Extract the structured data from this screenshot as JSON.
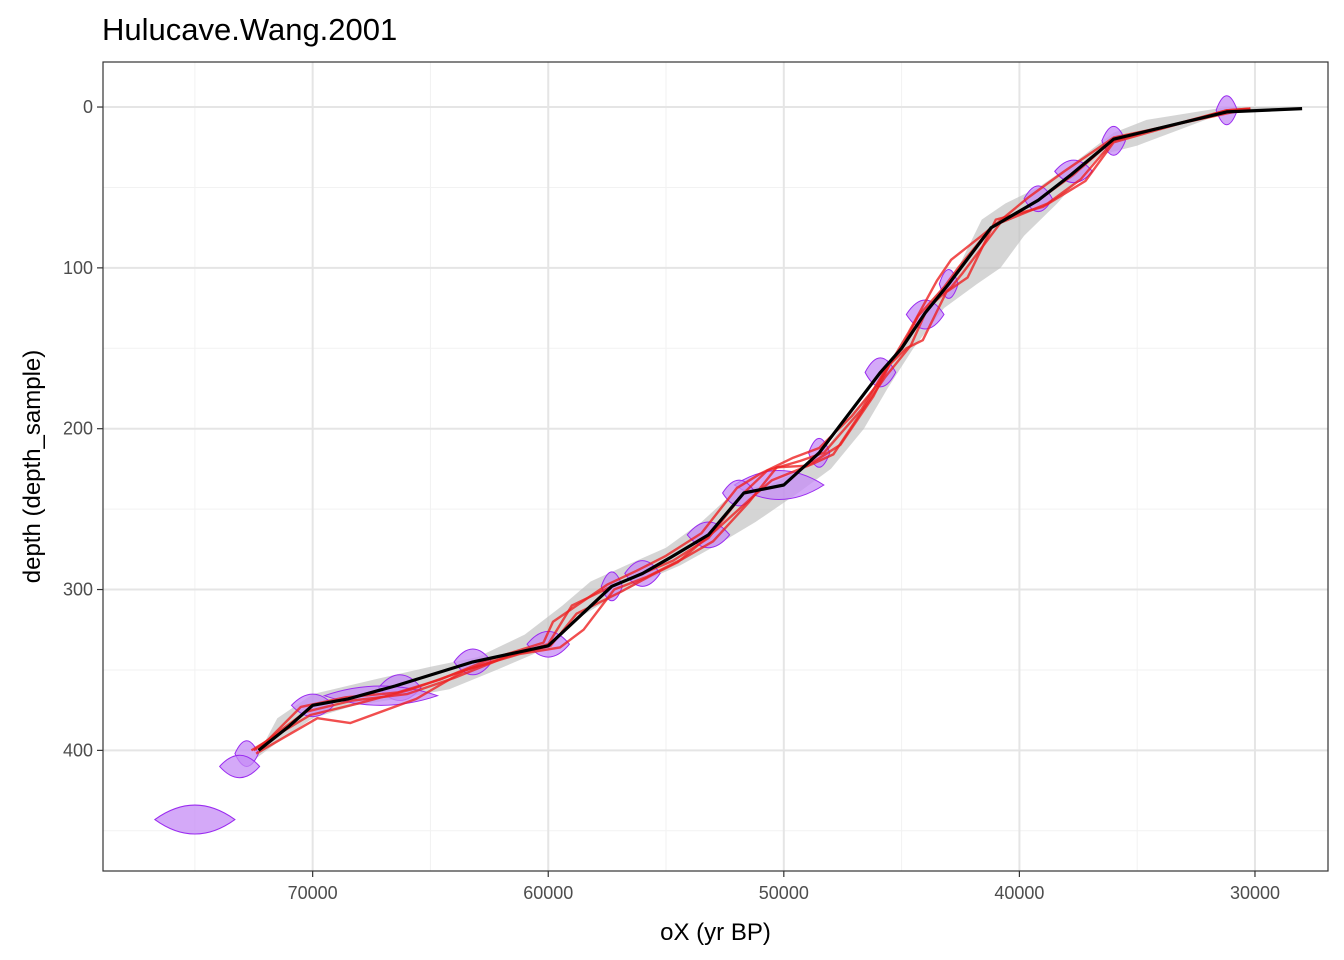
{
  "chart_data": {
    "type": "line",
    "title": "Hulucave.Wang.2001",
    "xlabel": "oX (yr BP)",
    "ylabel": "depth (depth_sample)",
    "xlim": [
      78900,
      26900
    ],
    "ylim": [
      475,
      -28
    ],
    "x_reversed": true,
    "y_reversed": true,
    "grid": true,
    "x_ticks": [
      70000,
      60000,
      50000,
      40000,
      30000
    ],
    "x_tick_labels": [
      "70000",
      "60000",
      "50000",
      "40000",
      "30000"
    ],
    "y_ticks": [
      0,
      100,
      200,
      300,
      400
    ],
    "y_tick_labels": [
      "0",
      "100",
      "200",
      "300",
      "400"
    ],
    "colors": {
      "median": "#000000",
      "ensemble": "#ee2222",
      "uncertainty_band": "#bfbfbf",
      "date_fill": "#c58cf5",
      "date_stroke": "#9a2bf0"
    },
    "series": [
      {
        "role": "median",
        "x": [
          28000,
          31200,
          36000,
          37800,
          39200,
          41200,
          43000,
          44000,
          45000,
          45900,
          48500,
          50000,
          51700,
          53200,
          54800,
          56000,
          57300,
          60000,
          63200,
          66500,
          68500,
          70000,
          71000,
          72300
        ],
        "depth": [
          1,
          3,
          20,
          42,
          58,
          75,
          110,
          128,
          150,
          165,
          215,
          235,
          240,
          266,
          280,
          290,
          298,
          335,
          345,
          360,
          368,
          372,
          385,
          400
        ]
      },
      {
        "role": "uncertainty_band",
        "x_upper": [
          28000,
          31200,
          34600,
          36000,
          37800,
          39200,
          40600,
          41600,
          42600,
          43600,
          44600,
          45500,
          46200,
          47100,
          48000,
          49200,
          50600,
          52000,
          53500,
          55000,
          56700,
          58200,
          59400,
          61000,
          63000,
          65000,
          67400,
          70000,
          71500
        ],
        "depth_upper": [
          0,
          0,
          8,
          16,
          36,
          50,
          60,
          70,
          100,
          118,
          140,
          160,
          176,
          190,
          208,
          225,
          235,
          238,
          258,
          274,
          285,
          295,
          310,
          328,
          342,
          348,
          356,
          365,
          380
        ],
        "x_lower": [
          72400,
          71400,
          70000,
          68200,
          66400,
          64200,
          62200,
          60600,
          59000,
          57400,
          56000,
          54400,
          52800,
          51200,
          49400,
          48000,
          46600,
          45600,
          44500,
          43200,
          41800,
          40800,
          39800,
          38400,
          36600,
          35000,
          31200,
          28000
        ],
        "depth_lower": [
          405,
          394,
          380,
          372,
          368,
          362,
          350,
          340,
          320,
          306,
          295,
          285,
          272,
          258,
          240,
          225,
          200,
          175,
          150,
          125,
          110,
          100,
          80,
          60,
          30,
          24,
          3,
          1
        ]
      },
      {
        "role": "ensemble",
        "members": [
          {
            "x": [
              72500,
              70300,
              68300,
              66000,
              64000,
              61800,
              60000,
              59000,
              57300,
              56000,
              54700,
              53200,
              51700,
              50700,
              49300,
              48300,
              46700,
              45800,
              45000,
              44300,
              43200,
              42600,
              41200,
              39200,
              37700,
              36000,
              31200,
              30200
            ],
            "depth": [
              400,
              376,
              369,
              365,
              355,
              342,
              334,
              310,
              298,
              290,
              282,
              268,
              240,
              226,
              220,
              215,
              188,
              166,
              150,
              130,
              112,
              100,
              75,
              58,
              42,
              20,
              3,
              1
            ]
          },
          {
            "x": [
              72400,
              69800,
              68400,
              65600,
              63500,
              61200,
              59500,
              58500,
              57200,
              55800,
              54300,
              53000,
              51500,
              50300,
              49000,
              47600,
              46200,
              45500,
              44800,
              44100,
              43100,
              42200,
              41000,
              39000,
              37200,
              36000,
              31200,
              30200
            ],
            "depth": [
              402,
              380,
              383,
              368,
              350,
              340,
              336,
              325,
              300,
              292,
              281,
              270,
              246,
              224,
              223,
              210,
              180,
              160,
              150,
              145,
              115,
              106,
              70,
              62,
              46,
              22,
              2,
              1
            ]
          },
          {
            "x": [
              72200,
              70500,
              68600,
              66400,
              64600,
              62600,
              60200,
              59800,
              57500,
              56200,
              55000,
              53500,
              52000,
              51000,
              49600,
              48500,
              47100,
              46000,
              45300,
              44700,
              43500,
              42900,
              41600,
              39600,
              38100,
              36000,
              31200,
              30200
            ],
            "depth": [
              398,
              373,
              367,
              364,
              356,
              344,
              333,
              320,
              297,
              288,
              279,
              265,
              237,
              228,
              218,
              212,
              192,
              172,
              155,
              140,
              108,
              95,
              80,
              56,
              40,
              19,
              4,
              1
            ]
          },
          {
            "x": [
              72600,
              70100,
              68100,
              65800,
              63900,
              61600,
              59900,
              58800,
              57000,
              55600,
              54500,
              52800,
              51300,
              50500,
              48800,
              47900,
              46500,
              45700,
              44600,
              43900,
              42900,
              42400,
              40800,
              38800,
              37400,
              36000,
              31200,
              30200
            ],
            "depth": [
              400,
              378,
              371,
              362,
              352,
              341,
              335,
              315,
              302,
              291,
              283,
              262,
              242,
              232,
              222,
              216,
              185,
              168,
              148,
              125,
              112,
              103,
              72,
              60,
              45,
              21,
              2,
              1
            ]
          }
        ]
      },
      {
        "role": "dates",
        "dates": [
          {
            "x": 31200,
            "depth": 2,
            "sx": 450,
            "sd": 9
          },
          {
            "x": 36000,
            "depth": 21,
            "sx": 500,
            "sd": 9
          },
          {
            "x": 37700,
            "depth": 40,
            "sx": 800,
            "sd": 7
          },
          {
            "x": 39200,
            "depth": 57,
            "sx": 600,
            "sd": 8
          },
          {
            "x": 43000,
            "depth": 110,
            "sx": 400,
            "sd": 9
          },
          {
            "x": 44000,
            "depth": 129,
            "sx": 800,
            "sd": 9
          },
          {
            "x": 45900,
            "depth": 165,
            "sx": 650,
            "sd": 9
          },
          {
            "x": 48500,
            "depth": 215,
            "sx": 450,
            "sd": 9
          },
          {
            "x": 50200,
            "depth": 235,
            "sx": 1900,
            "sd": 9
          },
          {
            "x": 51900,
            "depth": 240,
            "sx": 700,
            "sd": 8
          },
          {
            "x": 53200,
            "depth": 266,
            "sx": 900,
            "sd": 8
          },
          {
            "x": 56000,
            "depth": 290,
            "sx": 750,
            "sd": 8
          },
          {
            "x": 57300,
            "depth": 298,
            "sx": 450,
            "sd": 9
          },
          {
            "x": 60000,
            "depth": 334,
            "sx": 900,
            "sd": 8
          },
          {
            "x": 63200,
            "depth": 345,
            "sx": 800,
            "sd": 8
          },
          {
            "x": 66300,
            "depth": 361,
            "sx": 900,
            "sd": 8
          },
          {
            "x": 67100,
            "depth": 366,
            "sx": 2400,
            "sd": 6
          },
          {
            "x": 70000,
            "depth": 372,
            "sx": 900,
            "sd": 7
          },
          {
            "x": 72800,
            "depth": 402,
            "sx": 500,
            "sd": 8
          },
          {
            "x": 73100,
            "depth": 410,
            "sx": 850,
            "sd": 7
          },
          {
            "x": 75000,
            "depth": 443,
            "sx": 1700,
            "sd": 9
          }
        ]
      }
    ]
  }
}
